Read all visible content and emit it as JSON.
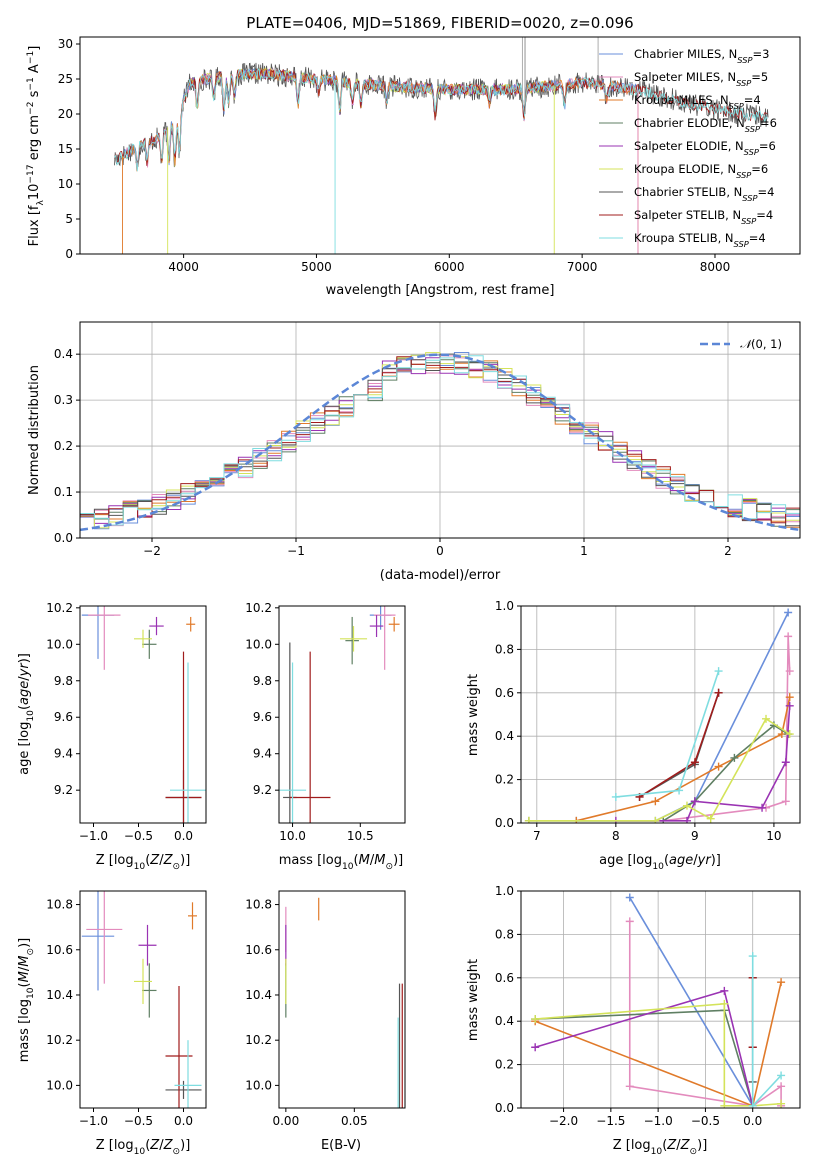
{
  "title": "PLATE=0406, MJD=51869, FIBERID=0020, z=0.096",
  "colors": {
    "chabrier_miles": "#6a8fdb",
    "salpeter_miles": "#e38bbd",
    "kroupa_miles": "#e07a2a",
    "chabrier_elodie": "#5f7f63",
    "salpeter_elodie": "#9a33b3",
    "kroupa_elodie": "#d4e35a",
    "chabrier_stelib": "#555555",
    "salpeter_stelib": "#a01c1c",
    "kroupa_stelib": "#7fdde0",
    "normal": "#5b86d6"
  },
  "chart_data": [
    {
      "id": "spectrum",
      "type": "line",
      "xlabel": "wavelength [Angstrom, rest frame]",
      "ylabel": "Flux [f_λ10^-17 erg cm^-2 s^-1 A^-1]",
      "xlim": [
        3220,
        8640
      ],
      "ylim": [
        0,
        31
      ],
      "xticks": [
        4000,
        5000,
        6000,
        7000,
        8000
      ],
      "yticks": [
        0,
        5,
        10,
        15,
        20,
        25,
        30
      ],
      "legend_position": "top-right",
      "legend": [
        "Chabrier MILES, N_SSP=3",
        "Salpeter MILES, N_SSP=5",
        "Kroupa MILES, N_SSP=4",
        "Chabrier ELODIE, N_SSP=6",
        "Salpeter ELODIE, N_SSP=6",
        "Kroupa ELODIE, N_SSP=6",
        "Chabrier STELIB, N_SSP=4",
        "Salpeter STELIB, N_SSP=4",
        "Kroupa STELIB, N_SSP=4"
      ],
      "continuum": {
        "x": [
          3500,
          3650,
          3800,
          3950,
          4050,
          4300,
          4600,
          5000,
          5500,
          6000,
          6500,
          7000,
          7400,
          7800,
          8200,
          8400
        ],
        "y": [
          13.5,
          15.5,
          16.5,
          19.5,
          24.5,
          25.5,
          25.8,
          25.0,
          24.0,
          23.5,
          23.5,
          24.5,
          23.5,
          21.5,
          20.0,
          19.5
        ]
      }
    },
    {
      "id": "residuals",
      "type": "step",
      "xlabel": "(data-model)/error",
      "ylabel": "Normed distribution",
      "xlim": [
        -2.5,
        2.5
      ],
      "ylim": [
        0,
        0.47
      ],
      "xticks": [
        -2,
        -1,
        0,
        1,
        2
      ],
      "yticks": [
        0.0,
        0.1,
        0.2,
        0.3,
        0.4
      ],
      "legend": [
        "𝒩(0,1)"
      ],
      "legend_position": "top-right",
      "grid": true
    },
    {
      "id": "age_vs_Z",
      "type": "errorbar",
      "xlabel": "Z [log10(Z/Z⊙)]",
      "ylabel": "age  [log10(age/yr)]",
      "xlim": [
        -1.15,
        0.25
      ],
      "ylim": [
        9.02,
        10.21
      ],
      "xticks": [
        -1.0,
        -0.5,
        0.0
      ],
      "yticks": [
        9.2,
        9.4,
        9.6,
        9.8,
        10.0,
        10.2
      ],
      "points": [
        {
          "model": "chabrier_miles",
          "x": -0.95,
          "y": 10.16,
          "xerr": 0.18,
          "yerr": 0.24
        },
        {
          "model": "salpeter_miles",
          "x": -0.88,
          "y": 10.16,
          "xerr": 0.18,
          "yerr": 0.3
        },
        {
          "model": "kroupa_miles",
          "x": 0.08,
          "y": 10.11,
          "xerr": 0.05,
          "yerr": 0.04
        },
        {
          "model": "chabrier_elodie",
          "x": -0.38,
          "y": 10.0,
          "xerr": 0.08,
          "yerr": 0.08
        },
        {
          "model": "salpeter_elodie",
          "x": -0.3,
          "y": 10.1,
          "xerr": 0.08,
          "yerr": 0.05
        },
        {
          "model": "kroupa_elodie",
          "x": -0.45,
          "y": 10.03,
          "xerr": 0.1,
          "yerr": 0.05
        },
        {
          "model": "chabrier_stelib",
          "x": 0.0,
          "y": 9.16,
          "xerr": 0.2,
          "yerr": 0.15
        },
        {
          "model": "salpeter_stelib",
          "x": 0.0,
          "y": 9.16,
          "xerr": 0.2,
          "yerr": 0.8
        },
        {
          "model": "kroupa_stelib",
          "x": 0.05,
          "y": 9.2,
          "xerr": 0.2,
          "yerr": 0.7
        }
      ]
    },
    {
      "id": "age_vs_mass",
      "type": "errorbar",
      "xlabel": "mass [log10(M/M⊙)]",
      "xlim": [
        9.9,
        10.83
      ],
      "ylim": [
        9.02,
        10.21
      ],
      "xticks": [
        10.0,
        10.5
      ],
      "yticks": [
        9.2,
        9.4,
        9.6,
        9.8,
        10.0,
        10.2
      ],
      "points": [
        {
          "model": "chabrier_miles",
          "x": 10.65,
          "y": 10.16,
          "xerr": 0.08,
          "yerr": 0.08
        },
        {
          "model": "salpeter_miles",
          "x": 10.68,
          "y": 10.16,
          "xerr": 0.08,
          "yerr": 0.3
        },
        {
          "model": "kroupa_miles",
          "x": 10.75,
          "y": 10.11,
          "xerr": 0.04,
          "yerr": 0.04
        },
        {
          "model": "chabrier_elodie",
          "x": 10.44,
          "y": 10.02,
          "xerr": 0.05,
          "yerr": 0.13
        },
        {
          "model": "salpeter_elodie",
          "x": 10.62,
          "y": 10.1,
          "xerr": 0.05,
          "yerr": 0.06
        },
        {
          "model": "kroupa_elodie",
          "x": 10.45,
          "y": 10.03,
          "xerr": 0.1,
          "yerr": 0.07
        },
        {
          "model": "chabrier_stelib",
          "x": 9.98,
          "y": 9.16,
          "xerr": 0.05,
          "yerr": 0.85
        },
        {
          "model": "salpeter_stelib",
          "x": 10.13,
          "y": 9.16,
          "xerr": 0.15,
          "yerr": 0.8
        },
        {
          "model": "kroupa_stelib",
          "x": 10.0,
          "y": 9.2,
          "xerr": 0.1,
          "yerr": 0.7
        }
      ]
    },
    {
      "id": "mass_weight_vs_age",
      "type": "line",
      "xlabel": "age  [log10(age/yr)]",
      "ylabel": "mass weight",
      "xlim": [
        6.8,
        10.33
      ],
      "ylim": [
        0,
        1
      ],
      "xticks": [
        7,
        8,
        9,
        10
      ],
      "yticks": [
        0.0,
        0.2,
        0.4,
        0.6,
        0.8,
        1.0
      ],
      "grid": true,
      "series": [
        {
          "model": "chabrier_miles",
          "x": [
            7.5,
            8.5,
            9.0,
            10.18
          ],
          "y": [
            0.01,
            0.01,
            0.1,
            0.97
          ]
        },
        {
          "model": "salpeter_miles",
          "x": [
            8.6,
            9.9,
            10.15,
            10.18,
            10.2
          ],
          "y": [
            0.01,
            0.07,
            0.1,
            0.86,
            0.7
          ]
        },
        {
          "model": "kroupa_miles",
          "x": [
            7.5,
            8.5,
            9.3,
            10.1,
            10.2
          ],
          "y": [
            0.01,
            0.1,
            0.26,
            0.41,
            0.58
          ]
        },
        {
          "model": "chabrier_elodie",
          "x": [
            6.9,
            8.6,
            9.0,
            9.5,
            10.0,
            10.18
          ],
          "y": [
            0.01,
            0.01,
            0.1,
            0.3,
            0.45,
            0.41
          ]
        },
        {
          "model": "salpeter_elodie",
          "x": [
            8.0,
            8.9,
            9.0,
            9.85,
            10.15,
            10.2
          ],
          "y": [
            0.01,
            0.01,
            0.1,
            0.07,
            0.28,
            0.54
          ]
        },
        {
          "model": "kroupa_elodie",
          "x": [
            6.9,
            8.5,
            8.9,
            9.2,
            9.9,
            10.2
          ],
          "y": [
            0.01,
            0.01,
            0.08,
            0.02,
            0.48,
            0.41
          ]
        },
        {
          "model": "chabrier_stelib",
          "x": [
            8.3,
            9.0,
            9.3
          ],
          "y": [
            0.12,
            0.27,
            0.6
          ]
        },
        {
          "model": "salpeter_stelib",
          "x": [
            8.3,
            9.0,
            9.3
          ],
          "y": [
            0.12,
            0.28,
            0.6
          ]
        },
        {
          "model": "kroupa_stelib",
          "x": [
            8.0,
            8.8,
            9.3
          ],
          "y": [
            0.12,
            0.15,
            0.7
          ]
        }
      ]
    },
    {
      "id": "mass_vs_Z",
      "type": "errorbar",
      "xlabel": "Z [log10(Z/Z⊙)]",
      "ylabel": "mass [log10(M/M⊙)]",
      "xlim": [
        -1.15,
        0.25
      ],
      "ylim": [
        9.9,
        10.86
      ],
      "xticks": [
        -1.0,
        -0.5,
        0.0
      ],
      "yticks": [
        10.0,
        10.2,
        10.4,
        10.6,
        10.8
      ],
      "points": [
        {
          "model": "chabrier_miles",
          "x": -0.95,
          "y": 10.66,
          "xerr": 0.18,
          "yerr": 0.24
        },
        {
          "model": "salpeter_miles",
          "x": -0.88,
          "y": 10.69,
          "xerr": 0.2,
          "yerr": 0.24
        },
        {
          "model": "kroupa_miles",
          "x": 0.1,
          "y": 10.75,
          "xerr": 0.05,
          "yerr": 0.06
        },
        {
          "model": "chabrier_elodie",
          "x": -0.38,
          "y": 10.42,
          "xerr": 0.08,
          "yerr": 0.12
        },
        {
          "model": "salpeter_elodie",
          "x": -0.4,
          "y": 10.62,
          "xerr": 0.1,
          "yerr": 0.09
        },
        {
          "model": "kroupa_elodie",
          "x": -0.45,
          "y": 10.46,
          "xerr": 0.1,
          "yerr": 0.1
        },
        {
          "model": "chabrier_stelib",
          "x": 0.0,
          "y": 9.98,
          "xerr": 0.2,
          "yerr": 0.04
        },
        {
          "model": "salpeter_stelib",
          "x": -0.05,
          "y": 10.13,
          "xerr": 0.15,
          "yerr": 0.31
        },
        {
          "model": "kroupa_stelib",
          "x": 0.05,
          "y": 10.0,
          "xerr": 0.15,
          "yerr": 0.2
        }
      ]
    },
    {
      "id": "mass_vs_ebv",
      "type": "errorbar",
      "xlabel": "E(B-V)",
      "xlim": [
        -0.005,
        0.087
      ],
      "ylim": [
        9.9,
        10.86
      ],
      "xticks": [
        0.0,
        0.05
      ],
      "yticks": [
        10.0,
        10.2,
        10.4,
        10.6,
        10.8
      ],
      "points": [
        {
          "model": "salpeter_miles",
          "x": 0.0,
          "y": 10.69,
          "xerr": 0.0,
          "yerr": 0.1
        },
        {
          "model": "kroupa_miles",
          "x": 0.024,
          "y": 10.78,
          "xerr": 0.0,
          "yerr": 0.05
        },
        {
          "model": "chabrier_elodie",
          "x": 0.0,
          "y": 10.42,
          "xerr": 0.0,
          "yerr": 0.12
        },
        {
          "model": "salpeter_elodie",
          "x": 0.0,
          "y": 10.62,
          "xerr": 0.0,
          "yerr": 0.09
        },
        {
          "model": "kroupa_elodie",
          "x": 0.0,
          "y": 10.46,
          "xerr": 0.0,
          "yerr": 0.1
        },
        {
          "model": "chabrier_stelib",
          "x": 0.083,
          "y": 10.15,
          "xerr": 0.0,
          "yerr": 0.3
        },
        {
          "model": "salpeter_stelib",
          "x": 0.085,
          "y": 10.15,
          "xerr": 0.0,
          "yerr": 0.3
        },
        {
          "model": "kroupa_stelib",
          "x": 0.082,
          "y": 10.1,
          "xerr": 0.0,
          "yerr": 0.2
        }
      ]
    },
    {
      "id": "mass_weight_vs_Z",
      "type": "line",
      "xlabel": "Z [log10(Z/Z⊙)]",
      "ylabel": "mass weight",
      "xlim": [
        -2.45,
        0.5
      ],
      "ylim": [
        0,
        1
      ],
      "xticks": [
        -2.0,
        -1.5,
        -1.0,
        -0.5,
        0.0
      ],
      "yticks": [
        0.0,
        0.2,
        0.4,
        0.6,
        0.8,
        1.0
      ],
      "grid": true,
      "series": [
        {
          "model": "chabrier_miles",
          "x": [
            -1.3,
            0.0
          ],
          "y": [
            0.97,
            0.01
          ]
        },
        {
          "model": "salpeter_miles",
          "x": [
            -1.3,
            -1.3,
            0.0,
            0.3,
            0.3
          ],
          "y": [
            0.86,
            0.1,
            0.01,
            0.1,
            0.01
          ]
        },
        {
          "model": "kroupa_miles",
          "x": [
            -2.3,
            0.0,
            0.3
          ],
          "y": [
            0.4,
            0.01,
            0.58
          ]
        },
        {
          "model": "chabrier_elodie",
          "x": [
            -2.3,
            -0.3,
            0.0
          ],
          "y": [
            0.41,
            0.45,
            0.01
          ]
        },
        {
          "model": "salpeter_elodie",
          "x": [
            -2.3,
            -0.3,
            0.0
          ],
          "y": [
            0.28,
            0.54,
            0.01
          ]
        },
        {
          "model": "kroupa_elodie",
          "x": [
            -2.3,
            -0.3,
            -0.3,
            0.0,
            0.3
          ],
          "y": [
            0.41,
            0.48,
            0.01,
            0.01,
            0.02
          ]
        },
        {
          "model": "chabrier_stelib",
          "x": [
            0.0,
            0.0,
            0.0
          ],
          "y": [
            0.6,
            0.28,
            0.12
          ]
        },
        {
          "model": "salpeter_stelib",
          "x": [
            0.0,
            0.0
          ],
          "y": [
            0.6,
            0.28
          ]
        },
        {
          "model": "kroupa_stelib",
          "x": [
            0.0,
            0.0,
            0.3
          ],
          "y": [
            0.7,
            0.01,
            0.15
          ]
        }
      ]
    }
  ]
}
